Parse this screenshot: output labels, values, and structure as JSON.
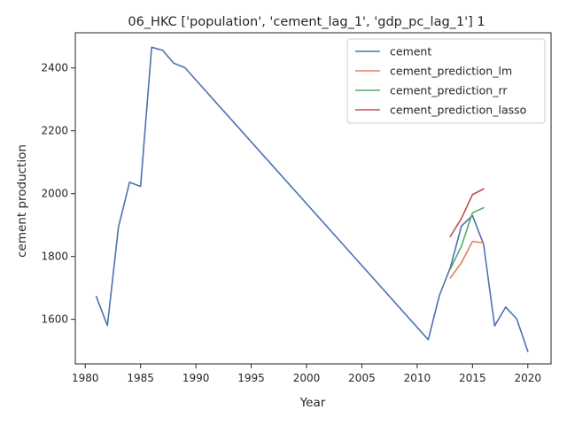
{
  "chart_data": {
    "type": "line",
    "title": "06_HKC ['population', 'cement_lag_1', 'gdp_pc_lag_1'] 1",
    "xlabel": "Year",
    "ylabel": "cement production",
    "xlim": [
      1979.1,
      2022.1
    ],
    "ylim": [
      1458,
      2512
    ],
    "xticks": [
      1980,
      1985,
      1990,
      1995,
      2000,
      2005,
      2010,
      2015,
      2020
    ],
    "yticks": [
      1600,
      1800,
      2000,
      2200,
      2400
    ],
    "grid": false,
    "legend_position": "top-right",
    "series": [
      {
        "name": "cement",
        "color": "#4c72b0",
        "x": [
          1981,
          1982,
          1983,
          1984,
          1985,
          1986,
          1987,
          1988,
          1989,
          2011,
          2012,
          2013,
          2014,
          2015,
          2016,
          2017,
          2018,
          2019,
          2020
        ],
        "y": [
          1672,
          1580,
          1893,
          2036,
          2023,
          2466,
          2456,
          2415,
          2401,
          1535,
          1675,
          1765,
          1897,
          1930,
          1839,
          1579,
          1639,
          1601,
          1498
        ]
      },
      {
        "name": "cement_prediction_lm",
        "color": "#dd8452",
        "x": [
          2013,
          2014,
          2015,
          2016
        ],
        "y": [
          1732,
          1780,
          1848,
          1843
        ]
      },
      {
        "name": "cement_prediction_rr",
        "color": "#55a868",
        "x": [
          2013,
          2014,
          2015,
          2016
        ],
        "y": [
          1760,
          1833,
          1939,
          1955
        ]
      },
      {
        "name": "cement_prediction_lasso",
        "color": "#c44e52",
        "x": [
          2013,
          2014,
          2015,
          2016
        ],
        "y": [
          1864,
          1921,
          1997,
          2015
        ]
      }
    ]
  }
}
